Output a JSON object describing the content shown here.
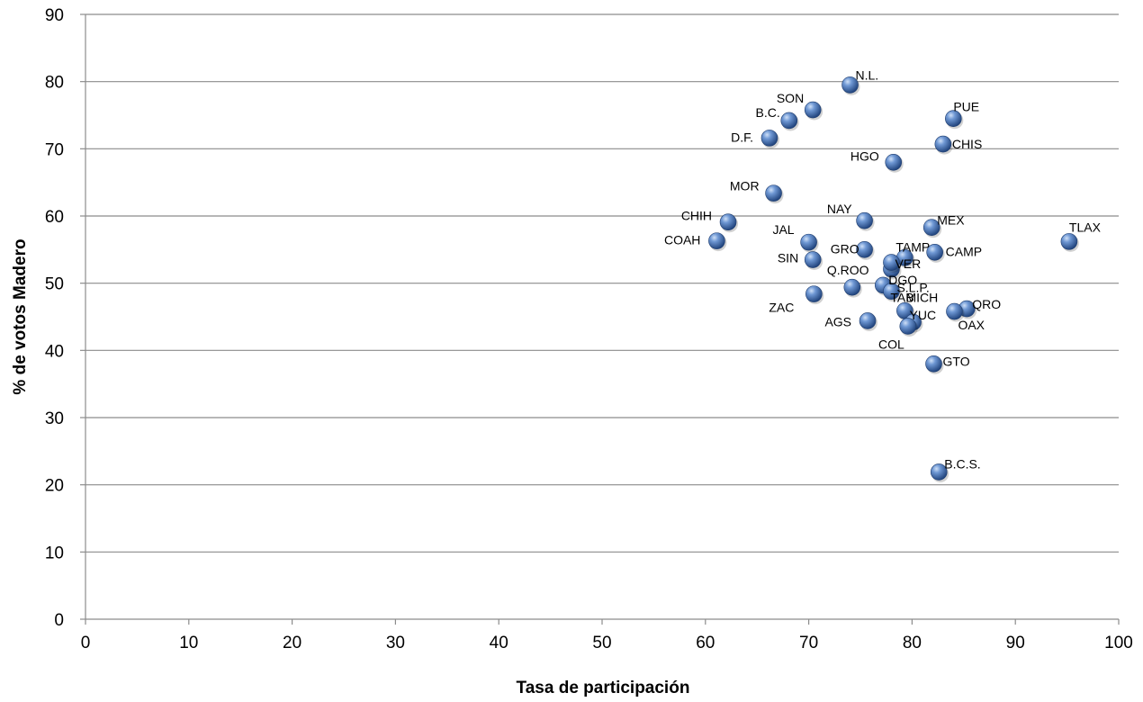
{
  "chart_data": {
    "type": "scatter",
    "title": "",
    "xlabel": "Tasa de participación",
    "ylabel": "% de votos Madero",
    "xlim": [
      0,
      100
    ],
    "ylim": [
      0,
      90
    ],
    "xticks": [
      0,
      10,
      20,
      30,
      40,
      50,
      60,
      70,
      80,
      90,
      100
    ],
    "yticks": [
      0,
      10,
      20,
      30,
      40,
      50,
      60,
      70,
      80,
      90
    ],
    "grid": "horizontal",
    "legend": "none",
    "marker_color": "#4a76b8",
    "points": [
      {
        "label": "N.L.",
        "x": 74.0,
        "y": 79.5
      },
      {
        "label": "SON",
        "x": 70.4,
        "y": 75.8
      },
      {
        "label": "B.C.",
        "x": 68.1,
        "y": 74.2
      },
      {
        "label": "D.F.",
        "x": 66.2,
        "y": 71.6
      },
      {
        "label": "PUE",
        "x": 84.0,
        "y": 74.5
      },
      {
        "label": "CHIS",
        "x": 83.0,
        "y": 70.7
      },
      {
        "label": "HGO",
        "x": 78.2,
        "y": 68.0
      },
      {
        "label": "MOR",
        "x": 66.6,
        "y": 63.4
      },
      {
        "label": "NAY",
        "x": 75.4,
        "y": 59.3
      },
      {
        "label": "CHIH",
        "x": 62.2,
        "y": 59.1
      },
      {
        "label": "MEX",
        "x": 81.9,
        "y": 58.3
      },
      {
        "label": "TLAX",
        "x": 95.2,
        "y": 56.2
      },
      {
        "label": "COAH",
        "x": 61.1,
        "y": 56.3
      },
      {
        "label": "JAL",
        "x": 70.0,
        "y": 56.1
      },
      {
        "label": "GRO",
        "x": 75.4,
        "y": 55.0
      },
      {
        "label": "TAMP",
        "x": 79.3,
        "y": 53.8
      },
      {
        "label": "CAMP",
        "x": 82.2,
        "y": 54.6
      },
      {
        "label": "SIN",
        "x": 70.4,
        "y": 53.5
      },
      {
        "label": "VER",
        "x": 78.0,
        "y": 52.1
      },
      {
        "label": "Q.ROO",
        "x": 74.2,
        "y": 49.4
      },
      {
        "label": "DGO",
        "x": 77.2,
        "y": 49.7
      },
      {
        "label": "ZAC",
        "x": 70.5,
        "y": 48.4
      },
      {
        "label": "MICH",
        "x": 78.0,
        "y": 48.8
      },
      {
        "label": "TAB",
        "x": 79.3,
        "y": 45.9
      },
      {
        "label": "YUC",
        "x": 80.1,
        "y": 44.2
      },
      {
        "label": "QRO",
        "x": 85.3,
        "y": 46.2
      },
      {
        "label": "OAX",
        "x": 84.1,
        "y": 45.8
      },
      {
        "label": "AGS",
        "x": 75.7,
        "y": 44.4
      },
      {
        "label": "COL",
        "x": 79.6,
        "y": 43.6
      },
      {
        "label": "S.L.P.",
        "x": 78.0,
        "y": 53.1
      },
      {
        "label": "GTO",
        "x": 82.1,
        "y": 38.0
      },
      {
        "label": "B.C.S.",
        "x": 82.6,
        "y": 21.9
      }
    ]
  }
}
